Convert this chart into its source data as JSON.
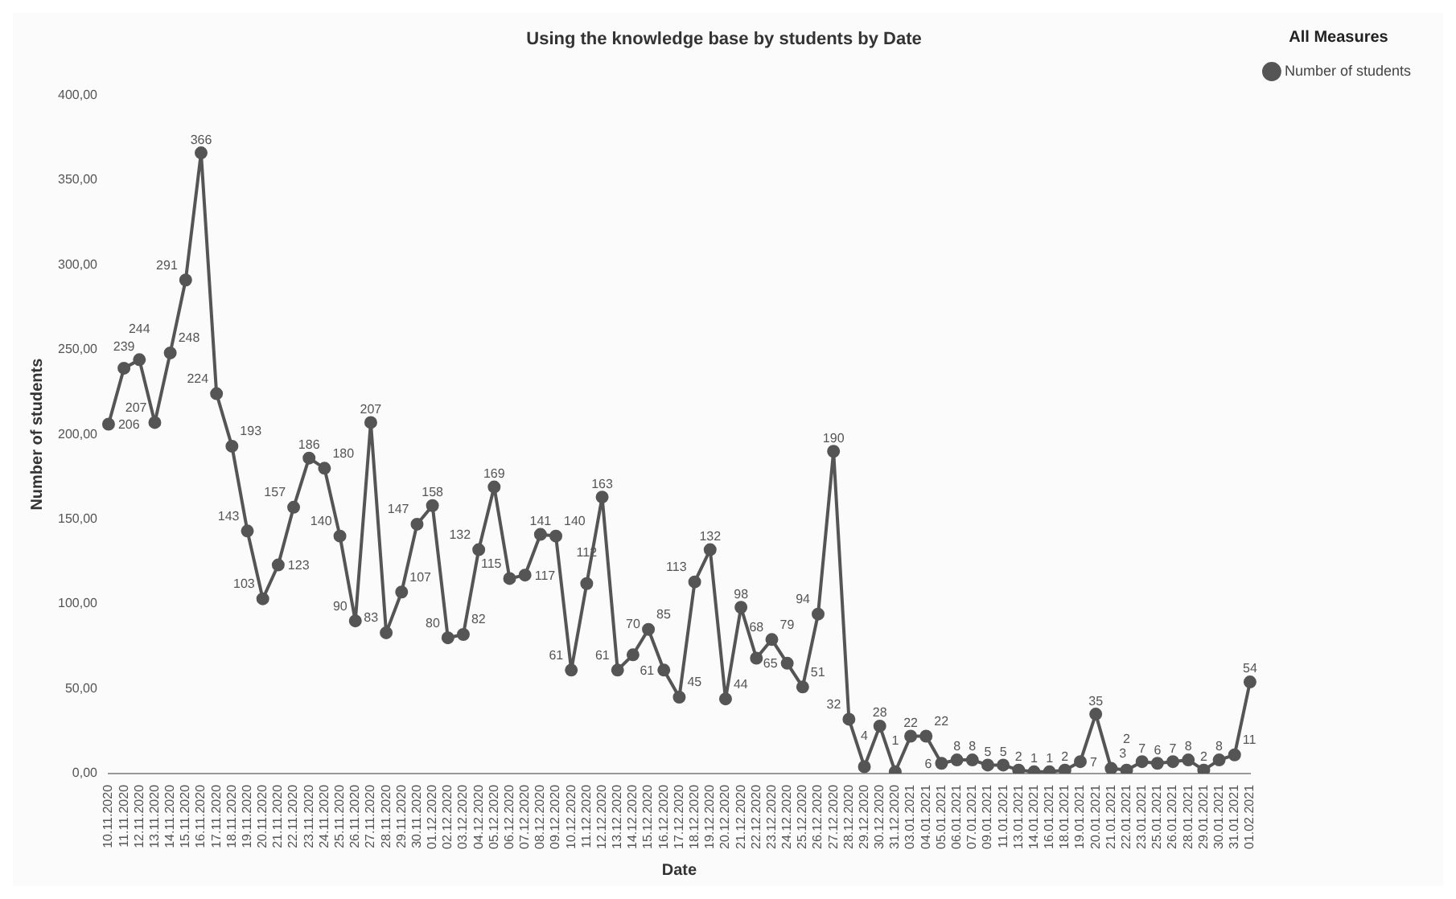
{
  "chart_data": {
    "type": "line",
    "title": "Using the knowledge base by students by Date",
    "xlabel": "Date",
    "ylabel": "Number of students",
    "legend_title": "All Measures",
    "categories": [
      "10.11.2020",
      "11.11.2020",
      "12.11.2020",
      "13.11.2020",
      "14.11.2020",
      "15.11.2020",
      "16.11.2020",
      "17.11.2020",
      "18.11.2020",
      "19.11.2020",
      "20.11.2020",
      "21.11.2020",
      "22.11.2020",
      "23.11.2020",
      "24.11.2020",
      "25.11.2020",
      "26.11.2020",
      "27.11.2020",
      "28.11.2020",
      "29.11.2020",
      "30.11.2020",
      "01.12.2020",
      "02.12.2020",
      "03.12.2020",
      "04.12.2020",
      "05.12.2020",
      "06.12.2020",
      "07.12.2020",
      "08.12.2020",
      "09.12.2020",
      "10.12.2020",
      "11.12.2020",
      "12.12.2020",
      "13.12.2020",
      "14.12.2020",
      "15.12.2020",
      "16.12.2020",
      "17.12.2020",
      "18.12.2020",
      "19.12.2020",
      "20.12.2020",
      "21.12.2020",
      "22.12.2020",
      "23.12.2020",
      "24.12.2020",
      "25.12.2020",
      "26.12.2020",
      "27.12.2020",
      "28.12.2020",
      "29.12.2020",
      "30.12.2020",
      "31.12.2020",
      "03.01.2021",
      "04.01.2021",
      "05.01.2021",
      "06.01.2021",
      "07.01.2021",
      "09.01.2021",
      "11.01.2021",
      "13.01.2021",
      "14.01.2021",
      "16.01.2021",
      "18.01.2021",
      "19.01.2021",
      "20.01.2021",
      "21.01.2021",
      "22.01.2021",
      "23.01.2021",
      "25.01.2021",
      "26.01.2021",
      "28.01.2021",
      "29.01.2021",
      "30.01.2021",
      "31.01.2021",
      "01.02.2021"
    ],
    "series": [
      {
        "name": "Number of students",
        "color": "#555555",
        "values": [
          206,
          239,
          244,
          207,
          248,
          291,
          366,
          224,
          193,
          143,
          103,
          123,
          157,
          186,
          180,
          140,
          90,
          207,
          83,
          107,
          147,
          158,
          80,
          82,
          132,
          169,
          115,
          117,
          141,
          140,
          61,
          112,
          163,
          61,
          70,
          85,
          61,
          45,
          113,
          132,
          44,
          98,
          68,
          79,
          65,
          51,
          94,
          190,
          32,
          4,
          28,
          1,
          22,
          22,
          6,
          8,
          8,
          5,
          5,
          2,
          1,
          1,
          2,
          7,
          35,
          3,
          2,
          7,
          6,
          7,
          8,
          2,
          8,
          11,
          54
        ]
      }
    ],
    "ylim": [
      0,
      400
    ],
    "yticks": [
      {
        "value": 0,
        "label": "0,00"
      },
      {
        "value": 50,
        "label": "50,00"
      },
      {
        "value": 100,
        "label": "100,00"
      },
      {
        "value": 150,
        "label": "150,00"
      },
      {
        "value": 200,
        "label": "200,00"
      },
      {
        "value": 250,
        "label": "250,00"
      },
      {
        "value": 300,
        "label": "300,00"
      },
      {
        "value": 350,
        "label": "350,00"
      },
      {
        "value": 400,
        "label": "400,00"
      }
    ],
    "grid": false,
    "legend": "top right",
    "marker": "circle",
    "line_style": "solid",
    "data_labels": true
  }
}
